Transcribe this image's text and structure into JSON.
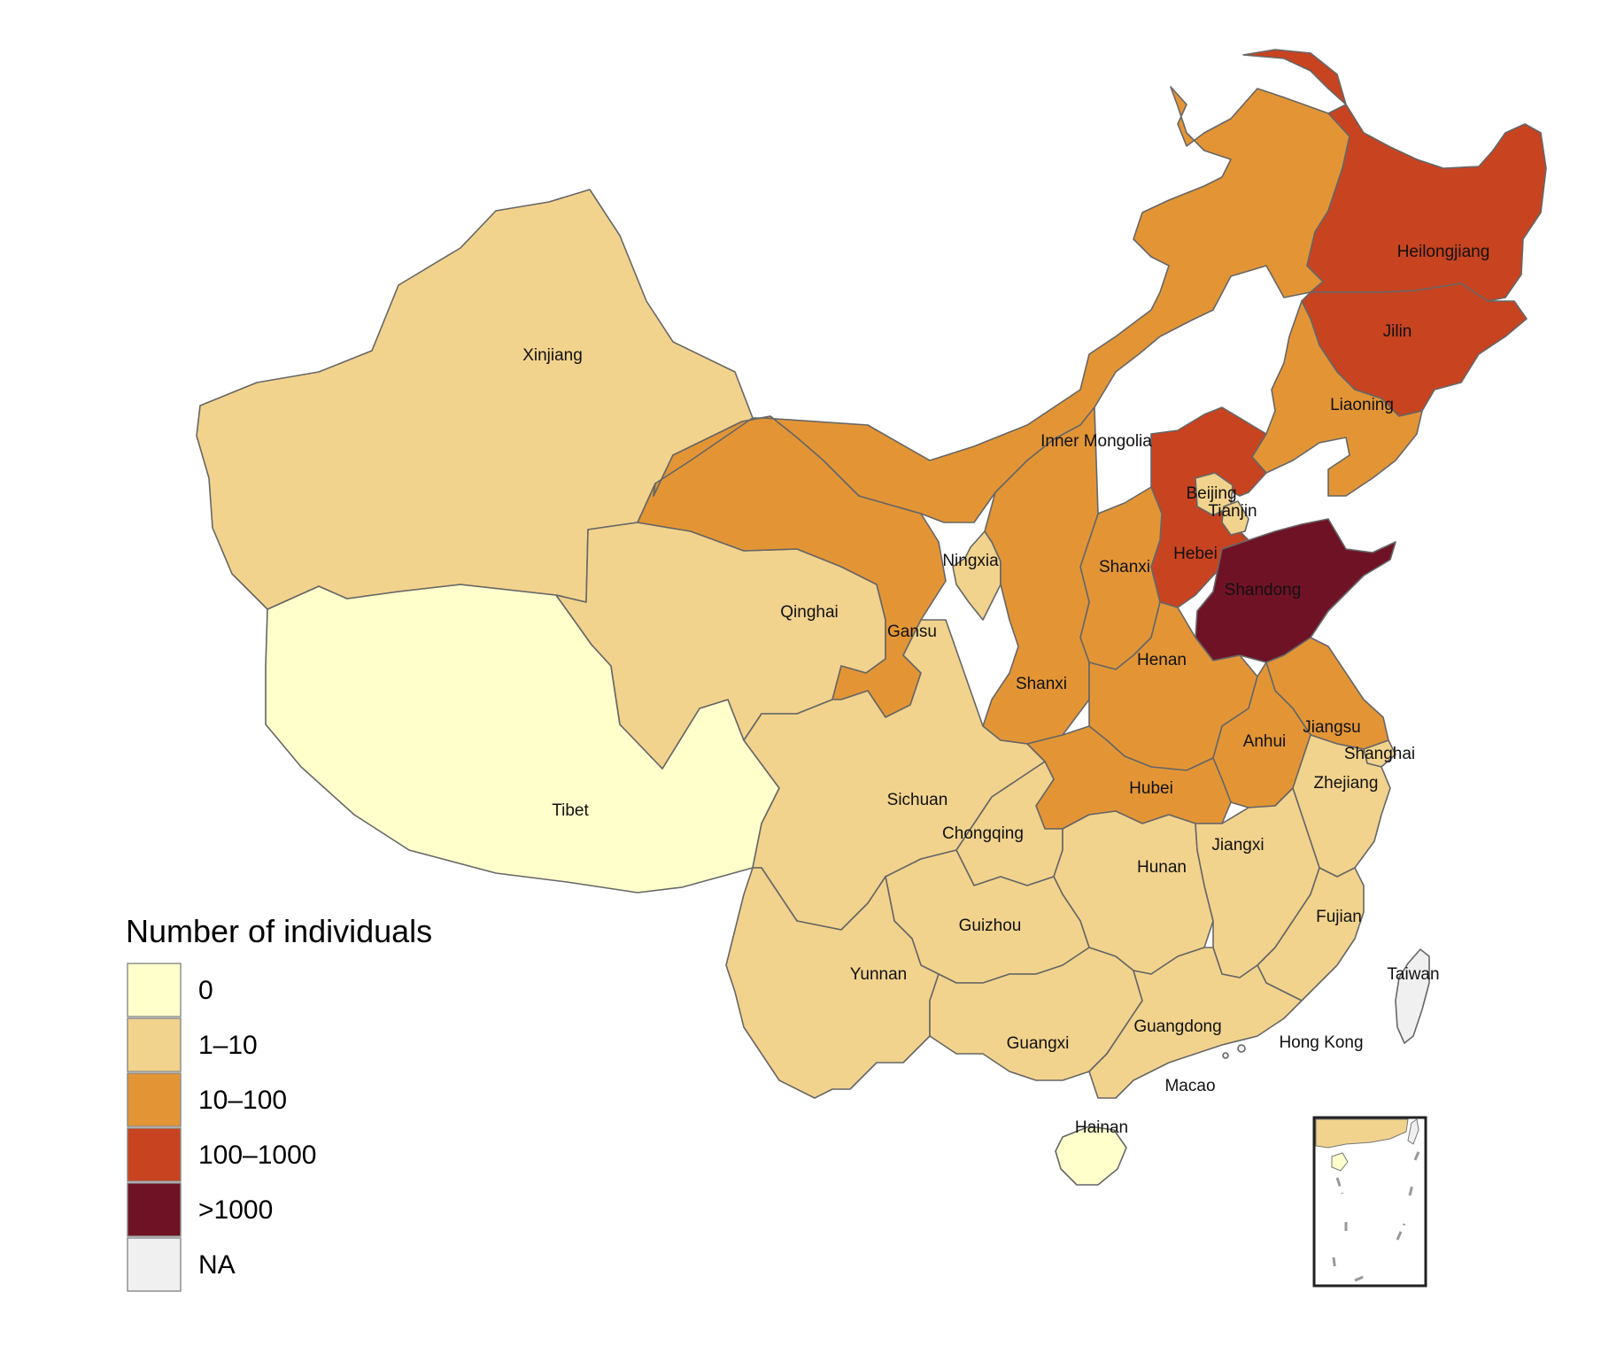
{
  "legend": {
    "title": "Number of individuals",
    "items": [
      {
        "label": "0",
        "color": "#FFFFCC"
      },
      {
        "label": "1–10",
        "color": "#F2D38D"
      },
      {
        "label": "10–100",
        "color": "#E39536"
      },
      {
        "label": "100–1000",
        "color": "#C84320"
      },
      {
        "label": ">1000",
        "color": "#701226"
      },
      {
        "label": "NA",
        "color": "#F0F0F0"
      }
    ]
  },
  "provinces": [
    {
      "name": "Heilongjiang",
      "category": "100–1000"
    },
    {
      "name": "Jilin",
      "category": "100–1000"
    },
    {
      "name": "Liaoning",
      "category": "10–100"
    },
    {
      "name": "Inner Mongolia",
      "category": "10–100"
    },
    {
      "name": "Xinjiang",
      "category": "1–10"
    },
    {
      "name": "Beijing",
      "category": "1–10"
    },
    {
      "name": "Tianjin",
      "category": "1–10"
    },
    {
      "name": "Hebei",
      "category": "100–1000"
    },
    {
      "name": "Shandong",
      "category": ">1000"
    },
    {
      "name": "Shanxi",
      "category": "10–100"
    },
    {
      "name": "Ningxia",
      "category": "1–10"
    },
    {
      "name": "Qinghai",
      "category": "1–10"
    },
    {
      "name": "Gansu",
      "category": "10–100"
    },
    {
      "name": "Shanxi",
      "category": "10–100"
    },
    {
      "name": "Henan",
      "category": "10–100"
    },
    {
      "name": "Jiangsu",
      "category": "10–100"
    },
    {
      "name": "Anhui",
      "category": "10–100"
    },
    {
      "name": "Shanghai",
      "category": "1–10"
    },
    {
      "name": "Hubei",
      "category": "10–100"
    },
    {
      "name": "Zhejiang",
      "category": "1–10"
    },
    {
      "name": "Tibet",
      "category": "0"
    },
    {
      "name": "Sichuan",
      "category": "1–10"
    },
    {
      "name": "Chongqing",
      "category": "1–10"
    },
    {
      "name": "Jiangxi",
      "category": "1–10"
    },
    {
      "name": "Hunan",
      "category": "1–10"
    },
    {
      "name": "Guizhou",
      "category": "1–10"
    },
    {
      "name": "Fujian",
      "category": "1–10"
    },
    {
      "name": "Yunnan",
      "category": "1–10"
    },
    {
      "name": "Taiwan",
      "category": "NA"
    },
    {
      "name": "Guangdong",
      "category": "1–10"
    },
    {
      "name": "Guangxi",
      "category": "1–10"
    },
    {
      "name": "Hong Kong",
      "category": "NA"
    },
    {
      "name": "Macao",
      "category": "NA"
    },
    {
      "name": "Hainan",
      "category": "0"
    }
  ]
}
